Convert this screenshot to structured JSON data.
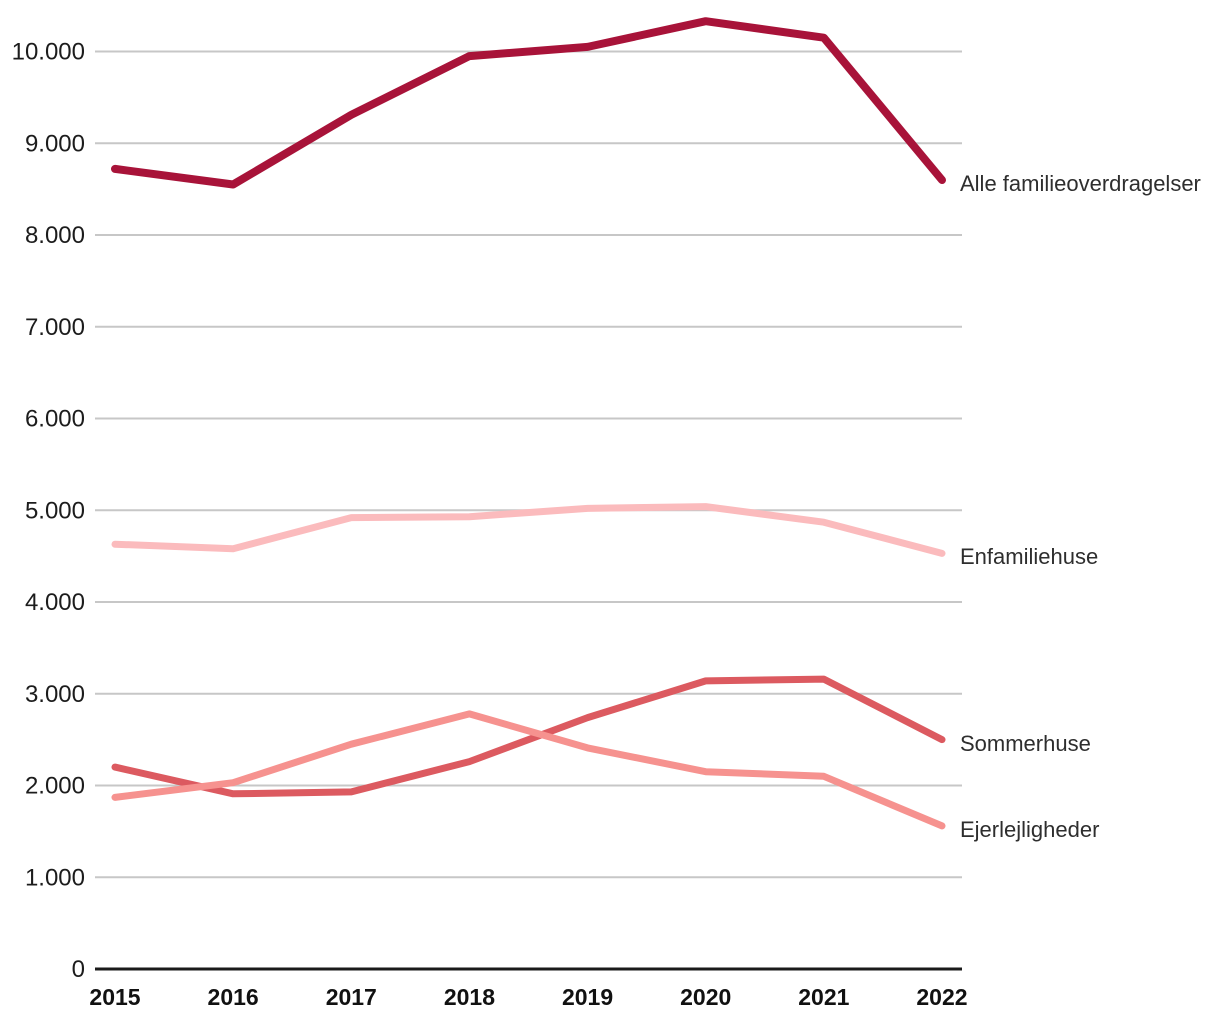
{
  "chart_data": {
    "type": "line",
    "title": "",
    "xlabel": "",
    "ylabel": "",
    "categories": [
      "2015",
      "2016",
      "2017",
      "2018",
      "2019",
      "2020",
      "2021",
      "2022"
    ],
    "series": [
      {
        "name": "Alle familieoverdragelser",
        "color": "#A81339",
        "stroke_width": 8,
        "values": [
          8720,
          8550,
          9310,
          9950,
          10050,
          10330,
          10150,
          8600
        ]
      },
      {
        "name": "Enfamiliehuse",
        "color": "#FBBBBD",
        "stroke_width": 7,
        "values": [
          4630,
          4580,
          4920,
          4930,
          5020,
          5040,
          4870,
          4530
        ]
      },
      {
        "name": "Sommerhuse",
        "color": "#DC5A60",
        "stroke_width": 7,
        "values": [
          2200,
          1910,
          1930,
          2260,
          2740,
          3140,
          3160,
          2500
        ]
      },
      {
        "name": "Ejerlejligheder",
        "color": "#F6928F",
        "stroke_width": 7,
        "values": [
          1870,
          2030,
          2450,
          2780,
          2410,
          2150,
          2100,
          1560
        ]
      }
    ],
    "y_ticks": [
      {
        "value": 10000,
        "label": "10.000"
      },
      {
        "value": 9000,
        "label": "9.000"
      },
      {
        "value": 8000,
        "label": "8.000"
      },
      {
        "value": 7000,
        "label": "7.000"
      },
      {
        "value": 6000,
        "label": "6.000"
      },
      {
        "value": 5000,
        "label": "5.000"
      },
      {
        "value": 4000,
        "label": "4.000"
      },
      {
        "value": 3000,
        "label": "3.000"
      },
      {
        "value": 2000,
        "label": "2.000"
      },
      {
        "value": 1000,
        "label": "1.000"
      },
      {
        "value": 0,
        "label": "0"
      }
    ],
    "ylim": [
      0,
      10500
    ],
    "grid": "horizontal",
    "legend_position": "right-end-labels",
    "colors": {
      "gridline": "#C7C7C7",
      "axis": "#1A1A1A"
    }
  }
}
